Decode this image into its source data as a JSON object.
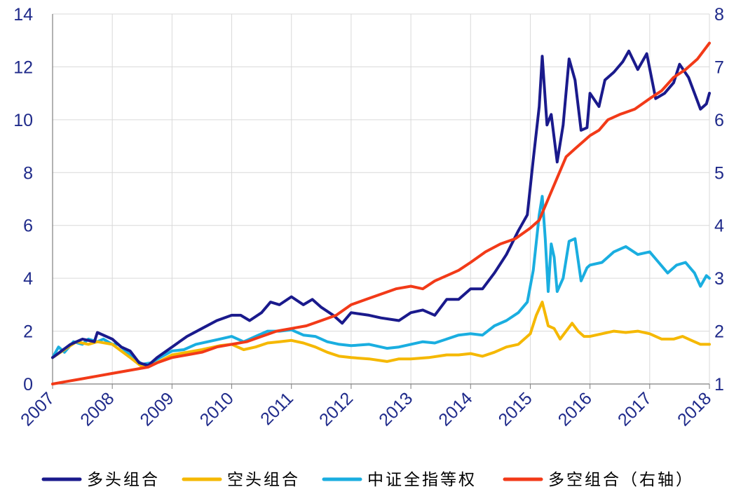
{
  "chart_data": {
    "type": "line",
    "x_ticks": [
      "2007",
      "2008",
      "2009",
      "2010",
      "2011",
      "2012",
      "2013",
      "2014",
      "2015",
      "2016",
      "2017",
      "2018"
    ],
    "y_left": {
      "ylim": [
        0,
        14
      ],
      "ticks": [
        "0",
        "2",
        "4",
        "6",
        "8",
        "10",
        "12",
        "14"
      ]
    },
    "y_right": {
      "ylim": [
        1,
        8
      ],
      "ticks": [
        "1",
        "2",
        "3",
        "4",
        "5",
        "6",
        "7",
        "8"
      ]
    },
    "grid": true,
    "legend_position": "bottom",
    "series": [
      {
        "name": "多头组合",
        "color": "#1a1a8c",
        "axis": "left",
        "points": [
          [
            2007.0,
            1.0
          ],
          [
            2007.3,
            1.5
          ],
          [
            2007.5,
            1.7
          ],
          [
            2007.7,
            1.6
          ],
          [
            2007.75,
            1.95
          ],
          [
            2008.0,
            1.7
          ],
          [
            2008.15,
            1.4
          ],
          [
            2008.3,
            1.25
          ],
          [
            2008.45,
            0.8
          ],
          [
            2008.6,
            0.7
          ],
          [
            2008.75,
            1.0
          ],
          [
            2009.0,
            1.4
          ],
          [
            2009.25,
            1.8
          ],
          [
            2009.5,
            2.1
          ],
          [
            2009.75,
            2.4
          ],
          [
            2010.0,
            2.6
          ],
          [
            2010.15,
            2.6
          ],
          [
            2010.3,
            2.4
          ],
          [
            2010.5,
            2.7
          ],
          [
            2010.65,
            3.1
          ],
          [
            2010.8,
            3.0
          ],
          [
            2011.0,
            3.3
          ],
          [
            2011.2,
            3.0
          ],
          [
            2011.35,
            3.2
          ],
          [
            2011.5,
            2.9
          ],
          [
            2011.7,
            2.6
          ],
          [
            2011.85,
            2.3
          ],
          [
            2012.0,
            2.7
          ],
          [
            2012.3,
            2.6
          ],
          [
            2012.5,
            2.5
          ],
          [
            2012.8,
            2.4
          ],
          [
            2013.0,
            2.7
          ],
          [
            2013.2,
            2.8
          ],
          [
            2013.4,
            2.6
          ],
          [
            2013.6,
            3.2
          ],
          [
            2013.8,
            3.2
          ],
          [
            2014.0,
            3.6
          ],
          [
            2014.2,
            3.6
          ],
          [
            2014.4,
            4.2
          ],
          [
            2014.6,
            4.9
          ],
          [
            2014.8,
            5.8
          ],
          [
            2014.95,
            6.4
          ],
          [
            2015.05,
            8.5
          ],
          [
            2015.15,
            10.5
          ],
          [
            2015.2,
            12.4
          ],
          [
            2015.28,
            9.8
          ],
          [
            2015.35,
            10.2
          ],
          [
            2015.45,
            8.4
          ],
          [
            2015.55,
            9.8
          ],
          [
            2015.65,
            12.3
          ],
          [
            2015.75,
            11.5
          ],
          [
            2015.85,
            9.6
          ],
          [
            2015.95,
            9.7
          ],
          [
            2016.0,
            11.0
          ],
          [
            2016.15,
            10.5
          ],
          [
            2016.25,
            11.5
          ],
          [
            2016.4,
            11.8
          ],
          [
            2016.55,
            12.2
          ],
          [
            2016.65,
            12.6
          ],
          [
            2016.8,
            11.9
          ],
          [
            2016.95,
            12.5
          ],
          [
            2017.1,
            10.8
          ],
          [
            2017.25,
            11.0
          ],
          [
            2017.4,
            11.4
          ],
          [
            2017.5,
            12.1
          ],
          [
            2017.65,
            11.6
          ],
          [
            2017.75,
            11.0
          ],
          [
            2017.85,
            10.4
          ],
          [
            2017.95,
            10.6
          ],
          [
            2018.0,
            11.0
          ]
        ]
      },
      {
        "name": "空头组合",
        "color": "#f5b800",
        "axis": "left",
        "points": [
          [
            2007.0,
            1.0
          ],
          [
            2007.2,
            1.3
          ],
          [
            2007.4,
            1.6
          ],
          [
            2007.6,
            1.5
          ],
          [
            2007.75,
            1.6
          ],
          [
            2008.0,
            1.5
          ],
          [
            2008.15,
            1.25
          ],
          [
            2008.3,
            1.0
          ],
          [
            2008.5,
            0.65
          ],
          [
            2008.7,
            0.75
          ],
          [
            2009.0,
            1.1
          ],
          [
            2009.25,
            1.2
          ],
          [
            2009.5,
            1.3
          ],
          [
            2009.8,
            1.45
          ],
          [
            2010.0,
            1.5
          ],
          [
            2010.2,
            1.3
          ],
          [
            2010.4,
            1.4
          ],
          [
            2010.6,
            1.55
          ],
          [
            2010.8,
            1.6
          ],
          [
            2011.0,
            1.65
          ],
          [
            2011.2,
            1.55
          ],
          [
            2011.4,
            1.4
          ],
          [
            2011.6,
            1.2
          ],
          [
            2011.8,
            1.05
          ],
          [
            2012.0,
            1.0
          ],
          [
            2012.3,
            0.95
          ],
          [
            2012.6,
            0.85
          ],
          [
            2012.8,
            0.95
          ],
          [
            2013.0,
            0.95
          ],
          [
            2013.3,
            1.0
          ],
          [
            2013.6,
            1.1
          ],
          [
            2013.8,
            1.1
          ],
          [
            2014.0,
            1.15
          ],
          [
            2014.2,
            1.05
          ],
          [
            2014.4,
            1.2
          ],
          [
            2014.6,
            1.4
          ],
          [
            2014.8,
            1.5
          ],
          [
            2015.0,
            1.9
          ],
          [
            2015.1,
            2.6
          ],
          [
            2015.2,
            3.1
          ],
          [
            2015.3,
            2.2
          ],
          [
            2015.4,
            2.1
          ],
          [
            2015.5,
            1.7
          ],
          [
            2015.6,
            2.0
          ],
          [
            2015.7,
            2.3
          ],
          [
            2015.8,
            2.0
          ],
          [
            2015.9,
            1.8
          ],
          [
            2016.0,
            1.8
          ],
          [
            2016.2,
            1.9
          ],
          [
            2016.4,
            2.0
          ],
          [
            2016.6,
            1.95
          ],
          [
            2016.8,
            2.0
          ],
          [
            2017.0,
            1.9
          ],
          [
            2017.2,
            1.7
          ],
          [
            2017.4,
            1.7
          ],
          [
            2017.55,
            1.8
          ],
          [
            2017.7,
            1.65
          ],
          [
            2017.85,
            1.5
          ],
          [
            2018.0,
            1.5
          ]
        ]
      },
      {
        "name": "中证全指等权",
        "color": "#1aaee0",
        "axis": "left",
        "points": [
          [
            2007.0,
            1.0
          ],
          [
            2007.1,
            1.4
          ],
          [
            2007.2,
            1.2
          ],
          [
            2007.35,
            1.6
          ],
          [
            2007.5,
            1.5
          ],
          [
            2007.6,
            1.7
          ],
          [
            2007.75,
            1.6
          ],
          [
            2007.85,
            1.7
          ],
          [
            2008.0,
            1.5
          ],
          [
            2008.1,
            1.5
          ],
          [
            2008.2,
            1.3
          ],
          [
            2008.35,
            1.0
          ],
          [
            2008.5,
            0.75
          ],
          [
            2008.65,
            0.8
          ],
          [
            2008.8,
            1.0
          ],
          [
            2009.0,
            1.25
          ],
          [
            2009.2,
            1.3
          ],
          [
            2009.4,
            1.5
          ],
          [
            2009.6,
            1.6
          ],
          [
            2009.8,
            1.7
          ],
          [
            2010.0,
            1.8
          ],
          [
            2010.2,
            1.6
          ],
          [
            2010.4,
            1.8
          ],
          [
            2010.6,
            2.0
          ],
          [
            2010.8,
            2.0
          ],
          [
            2011.0,
            2.05
          ],
          [
            2011.2,
            1.85
          ],
          [
            2011.4,
            1.8
          ],
          [
            2011.6,
            1.6
          ],
          [
            2011.8,
            1.5
          ],
          [
            2012.0,
            1.45
          ],
          [
            2012.3,
            1.5
          ],
          [
            2012.6,
            1.35
          ],
          [
            2012.8,
            1.4
          ],
          [
            2013.0,
            1.5
          ],
          [
            2013.2,
            1.6
          ],
          [
            2013.4,
            1.55
          ],
          [
            2013.6,
            1.7
          ],
          [
            2013.8,
            1.85
          ],
          [
            2014.0,
            1.9
          ],
          [
            2014.2,
            1.85
          ],
          [
            2014.4,
            2.2
          ],
          [
            2014.6,
            2.4
          ],
          [
            2014.8,
            2.7
          ],
          [
            2014.95,
            3.1
          ],
          [
            2015.05,
            4.3
          ],
          [
            2015.15,
            6.4
          ],
          [
            2015.2,
            7.1
          ],
          [
            2015.25,
            5.5
          ],
          [
            2015.3,
            3.5
          ],
          [
            2015.35,
            5.3
          ],
          [
            2015.4,
            4.8
          ],
          [
            2015.45,
            3.5
          ],
          [
            2015.55,
            4.0
          ],
          [
            2015.65,
            5.4
          ],
          [
            2015.75,
            5.5
          ],
          [
            2015.85,
            3.9
          ],
          [
            2015.95,
            4.4
          ],
          [
            2016.0,
            4.5
          ],
          [
            2016.2,
            4.6
          ],
          [
            2016.4,
            5.0
          ],
          [
            2016.6,
            5.2
          ],
          [
            2016.8,
            4.9
          ],
          [
            2017.0,
            5.0
          ],
          [
            2017.15,
            4.6
          ],
          [
            2017.3,
            4.2
          ],
          [
            2017.45,
            4.5
          ],
          [
            2017.6,
            4.6
          ],
          [
            2017.75,
            4.2
          ],
          [
            2017.85,
            3.7
          ],
          [
            2017.95,
            4.1
          ],
          [
            2018.0,
            4.0
          ]
        ]
      },
      {
        "name": "多空组合（右轴）",
        "color": "#f23a18",
        "axis": "right",
        "points": [
          [
            2007.0,
            1.0
          ],
          [
            2007.25,
            1.05
          ],
          [
            2007.5,
            1.1
          ],
          [
            2007.75,
            1.15
          ],
          [
            2008.0,
            1.2
          ],
          [
            2008.25,
            1.25
          ],
          [
            2008.5,
            1.3
          ],
          [
            2008.6,
            1.32
          ],
          [
            2008.75,
            1.4
          ],
          [
            2009.0,
            1.5
          ],
          [
            2009.25,
            1.55
          ],
          [
            2009.5,
            1.6
          ],
          [
            2009.75,
            1.7
          ],
          [
            2010.0,
            1.75
          ],
          [
            2010.25,
            1.8
          ],
          [
            2010.5,
            1.9
          ],
          [
            2010.75,
            2.0
          ],
          [
            2011.0,
            2.05
          ],
          [
            2011.25,
            2.1
          ],
          [
            2011.5,
            2.2
          ],
          [
            2011.75,
            2.3
          ],
          [
            2012.0,
            2.5
          ],
          [
            2012.25,
            2.6
          ],
          [
            2012.5,
            2.7
          ],
          [
            2012.75,
            2.8
          ],
          [
            2013.0,
            2.85
          ],
          [
            2013.2,
            2.8
          ],
          [
            2013.4,
            2.95
          ],
          [
            2013.6,
            3.05
          ],
          [
            2013.8,
            3.15
          ],
          [
            2014.0,
            3.3
          ],
          [
            2014.25,
            3.5
          ],
          [
            2014.5,
            3.65
          ],
          [
            2014.75,
            3.75
          ],
          [
            2015.0,
            3.95
          ],
          [
            2015.15,
            4.1
          ],
          [
            2015.3,
            4.5
          ],
          [
            2015.45,
            4.9
          ],
          [
            2015.6,
            5.3
          ],
          [
            2015.75,
            5.45
          ],
          [
            2015.9,
            5.6
          ],
          [
            2016.0,
            5.7
          ],
          [
            2016.15,
            5.8
          ],
          [
            2016.3,
            6.0
          ],
          [
            2016.5,
            6.1
          ],
          [
            2016.75,
            6.2
          ],
          [
            2017.0,
            6.4
          ],
          [
            2017.2,
            6.55
          ],
          [
            2017.4,
            6.8
          ],
          [
            2017.6,
            6.95
          ],
          [
            2017.8,
            7.15
          ],
          [
            2018.0,
            7.45
          ]
        ]
      }
    ]
  }
}
